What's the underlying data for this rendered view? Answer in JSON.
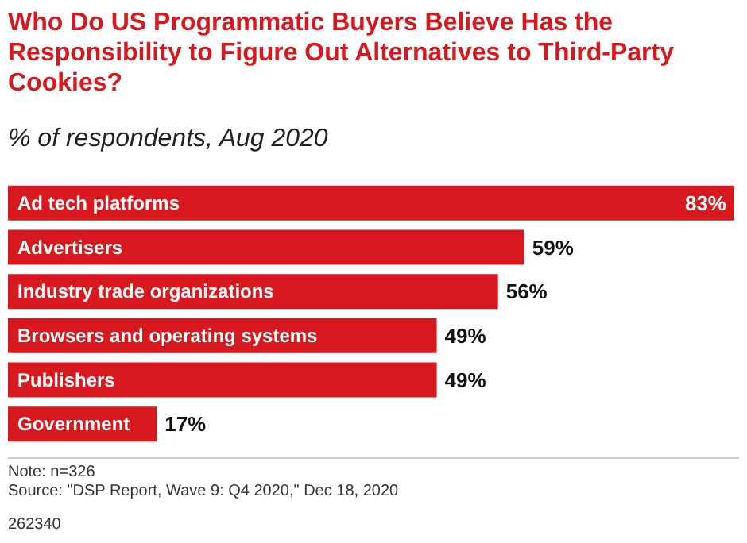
{
  "chart_data": {
    "type": "bar",
    "orientation": "horizontal",
    "title": "Who Do US Programmatic Buyers Believe Has the Responsibility to Figure Out Alternatives to Third-Party Cookies?",
    "subtitle": "% of respondents, Aug 2020",
    "categories": [
      "Ad tech platforms",
      "Advertisers",
      "Industry trade organizations",
      "Browsers and operating systems",
      "Publishers",
      "Government"
    ],
    "values": [
      83,
      59,
      56,
      49,
      49,
      17
    ],
    "value_labels": [
      "83%",
      "59%",
      "56%",
      "49%",
      "49%",
      "17%"
    ],
    "color": "#d7191f",
    "annotations": [
      "Note: n=326",
      "Source: \"DSP Report, Wave 9: Q4 2020,\" Dec 18, 2020",
      "262340"
    ]
  }
}
